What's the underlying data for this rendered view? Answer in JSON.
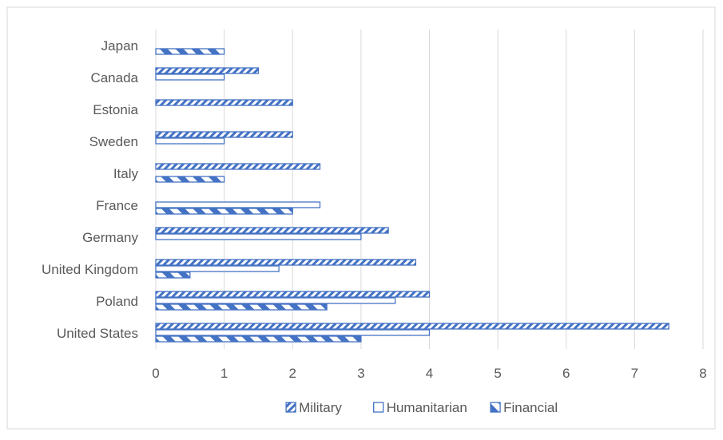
{
  "colors": {
    "accent": "#4472c4",
    "gridline": "#d9d9d9",
    "text": "#595959",
    "border": "#d9d9d9"
  },
  "chart_data": {
    "type": "bar",
    "orientation": "horizontal",
    "categories": [
      "United States",
      "Poland",
      "United Kingdom",
      "Germany",
      "France",
      "Italy",
      "Sweden",
      "Estonia",
      "Canada",
      "Japan"
    ],
    "series": [
      {
        "name": "Military",
        "pattern": "diagonal-stripes",
        "values": [
          7.5,
          4,
          3.8,
          3.4,
          null,
          2.4,
          2,
          2,
          1.5,
          null
        ]
      },
      {
        "name": "Humanitarian",
        "pattern": "outline",
        "values": [
          4,
          3.5,
          1.8,
          3,
          2.4,
          null,
          1,
          null,
          1,
          null
        ]
      },
      {
        "name": "Financial",
        "pattern": "wide-diagonal-stripes",
        "values": [
          3,
          2.5,
          0.5,
          null,
          2,
          1,
          null,
          null,
          null,
          1
        ]
      }
    ],
    "xlim": [
      0,
      8
    ],
    "xticks": [
      0,
      1,
      2,
      3,
      4,
      5,
      6,
      7,
      8
    ],
    "grid": true,
    "legend_position": "bottom",
    "title": "",
    "xlabel": "",
    "ylabel": ""
  }
}
